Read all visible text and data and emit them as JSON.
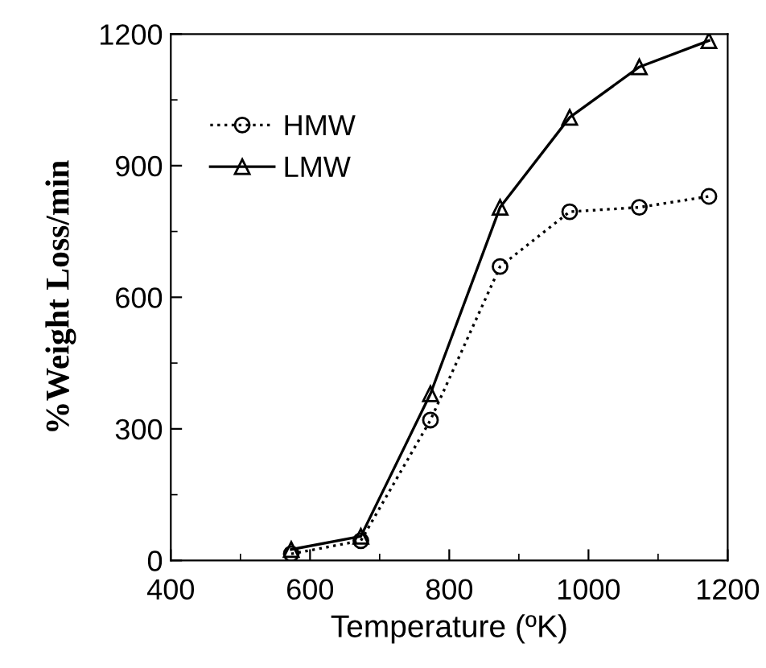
{
  "chart_data": {
    "type": "line",
    "xlabel": "Temperature (ºK)",
    "ylabel": "%Weight Loss/min",
    "x": [
      573,
      673,
      773,
      873,
      973,
      1073,
      1173
    ],
    "series": [
      {
        "name": "HMW",
        "color": "#000000",
        "marker": "circle",
        "line_style": "dotted",
        "values": [
          15,
          45,
          320,
          670,
          795,
          805,
          830
        ]
      },
      {
        "name": "LMW",
        "color": "#000000",
        "marker": "triangle",
        "line_style": "solid",
        "values": [
          25,
          55,
          380,
          805,
          1010,
          1125,
          1185
        ]
      }
    ],
    "xlim": [
      400,
      1200
    ],
    "ylim": [
      0,
      1200
    ],
    "xticks": [
      400,
      {
        "value": 500,
        "label": null
      },
      600,
      {
        "value": 700,
        "label": null
      },
      800,
      {
        "value": 900,
        "label": null
      },
      1000,
      {
        "value": 1100,
        "label": null
      },
      1200
    ],
    "yticks": [
      0,
      {
        "value": 150,
        "label": null
      },
      300,
      {
        "value": 450,
        "label": null
      },
      600,
      {
        "value": 750,
        "label": null
      },
      900,
      {
        "value": 1050,
        "label": null
      },
      1200
    ],
    "grid": false,
    "legend": "top left"
  }
}
